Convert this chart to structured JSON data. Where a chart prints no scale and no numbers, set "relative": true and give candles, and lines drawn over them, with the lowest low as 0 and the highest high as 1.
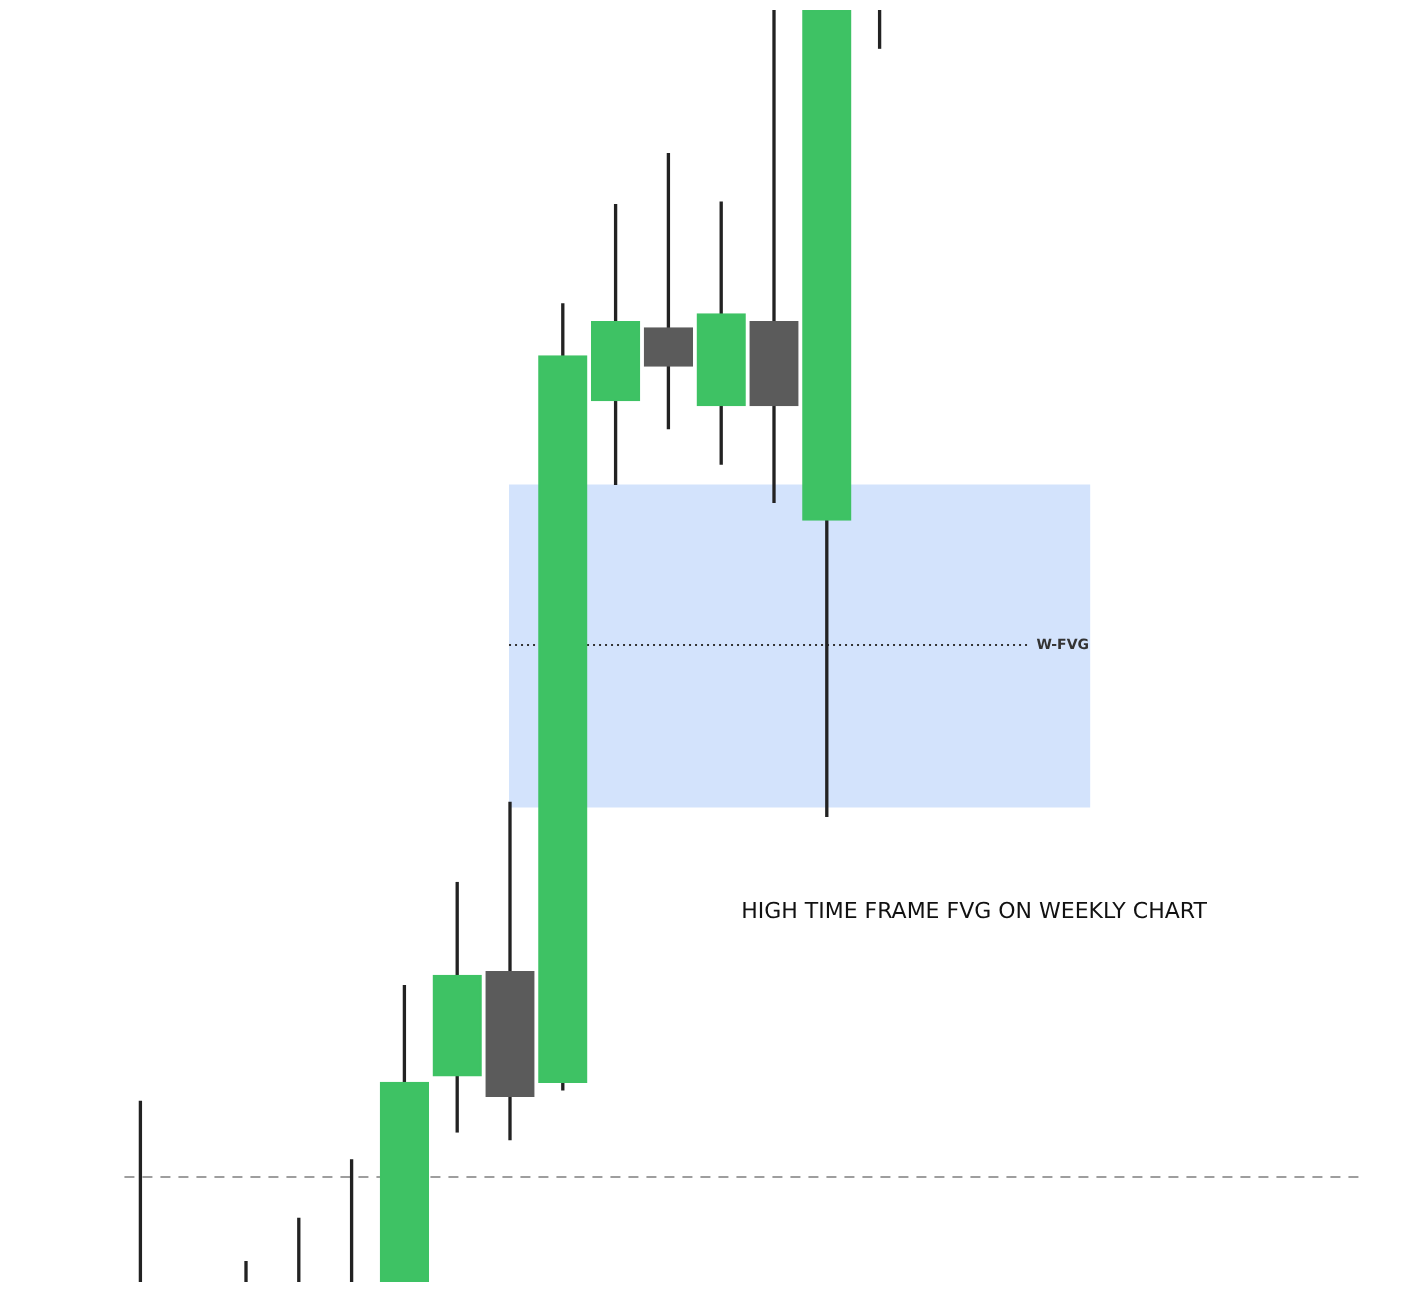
{
  "chart_data": {
    "type": "candlestick",
    "relative": true,
    "categories": [
      null,
      null,
      null,
      null,
      null,
      null,
      null,
      null,
      null,
      null,
      null,
      null,
      null,
      null,
      null
    ],
    "ohlc": [
      [
        0,
        0.142,
        0,
        0
      ],
      null,
      [
        0,
        0.016,
        0,
        0
      ],
      [
        0,
        0.05,
        0,
        0
      ],
      [
        0,
        0.096,
        0,
        0
      ],
      [
        0,
        0.233,
        0,
        0.157
      ],
      [
        0.162,
        0.314,
        0.118,
        0.241
      ],
      [
        0.244,
        0.377,
        0.112,
        0.146
      ],
      [
        0.157,
        0.769,
        0.151,
        0.728
      ],
      [
        0.693,
        0.847,
        0.627,
        0.755
      ],
      [
        0.75,
        0.887,
        0.671,
        0.72
      ],
      [
        0.689,
        0.849,
        0.643,
        0.761
      ],
      [
        0.755,
        1,
        0.613,
        0.689
      ],
      [
        0.599,
        1,
        0.366,
        1
      ],
      [
        1,
        1,
        0.97,
        1
      ]
    ],
    "colors": [
      null,
      null,
      null,
      null,
      null,
      "#3ec264",
      "#3ec264",
      "#5b5b5b",
      "#3ec264",
      "#3ec264",
      "#5b5b5b",
      "#3ec264",
      "#5b5b5b",
      "#3ec264",
      null
    ],
    "bands": [
      {
        "axis": "y",
        "from": 0.373,
        "to": 0.627,
        "color": "#d3e3fc"
      }
    ],
    "ref_lines": [
      {
        "axis": "y",
        "value": 0.502,
        "label": "W-FVG",
        "color": "#333333",
        "line_style": "dotted"
      },
      {
        "axis": "y",
        "value": 0.083,
        "color": "#9e9e9e",
        "line_style": "dashed"
      }
    ],
    "annotations": [
      "HIGH TIME FRAME FVG ON WEEKLY CHART"
    ],
    "legend": false
  }
}
